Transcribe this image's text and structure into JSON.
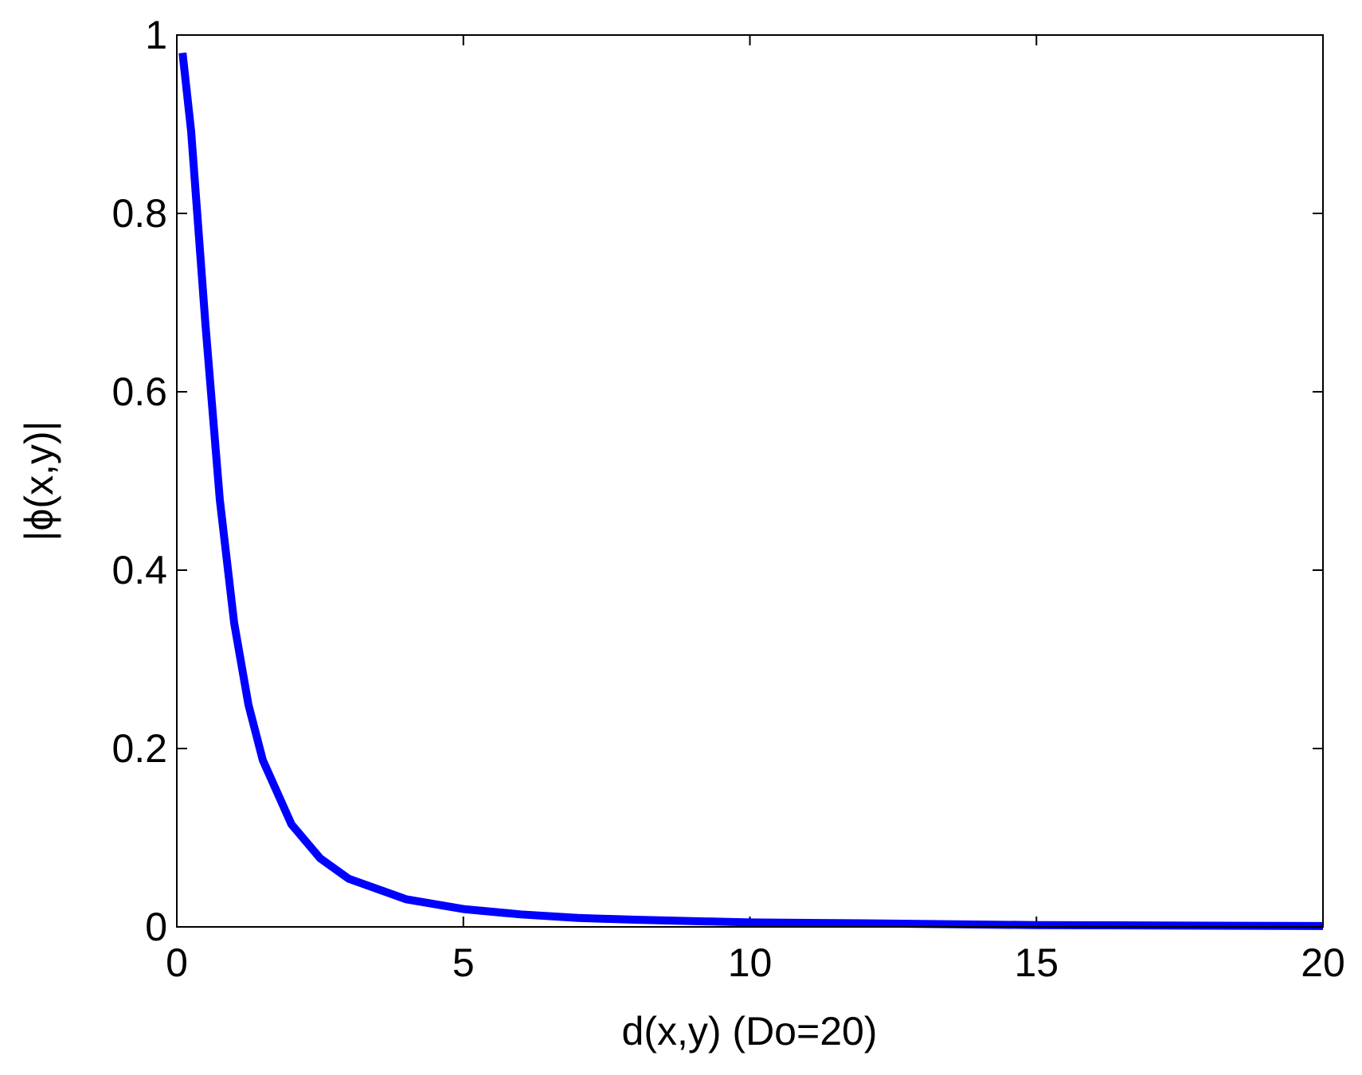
{
  "chart_data": {
    "type": "line",
    "xlabel": "d(x,y) (Do=20)",
    "ylabel": "|ϕ(x,y)|",
    "x": [
      0.1,
      0.25,
      0.5,
      0.75,
      1,
      1.25,
      1.5,
      2,
      2.5,
      3,
      4,
      5,
      6,
      7,
      8,
      10,
      12,
      15,
      20
    ],
    "series": [
      {
        "color": "#0000ff",
        "values": [
          0.98,
          0.892,
          0.675,
          0.479,
          0.341,
          0.249,
          0.187,
          0.115,
          0.077,
          0.054,
          0.031,
          0.02,
          0.014,
          0.01,
          0.008,
          0.005,
          0.004,
          0.002,
          0.001
        ]
      }
    ],
    "xlim": [
      0,
      20
    ],
    "xticks": [
      0,
      5,
      10,
      15,
      20
    ],
    "ylim": [
      0,
      1
    ],
    "yticks": [
      0,
      0.2,
      0.4,
      0.6,
      0.8,
      1
    ],
    "grid": false
  }
}
